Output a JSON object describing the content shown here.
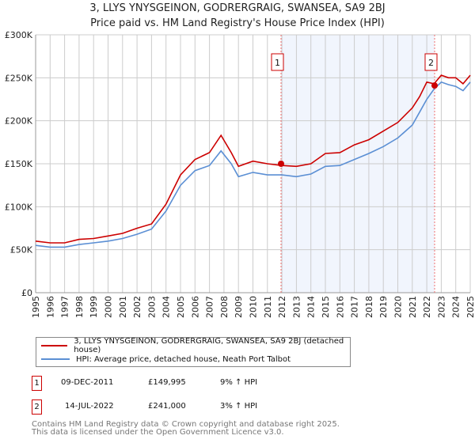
{
  "header": {
    "title": "3, LLYS YNYSGEINON, GODRERGRAIG, SWANSEA, SA9 2BJ",
    "subtitle": "Price paid vs. HM Land Registry's House Price Index (HPI)"
  },
  "chart_data": {
    "type": "line",
    "title": "3, LLYS YNYSGEINON, GODRERGRAIG, SWANSEA, SA9 2BJ",
    "subtitle": "Price paid vs. HM Land Registry's House Price Index (HPI)",
    "xlim": [
      1995,
      2025
    ],
    "ylim": [
      0,
      300000
    ],
    "yticks": [
      {
        "v": 0,
        "label": "£0"
      },
      {
        "v": 50000,
        "label": "£50K"
      },
      {
        "v": 100000,
        "label": "£100K"
      },
      {
        "v": 150000,
        "label": "£150K"
      },
      {
        "v": 200000,
        "label": "£200K"
      },
      {
        "v": 250000,
        "label": "£250K"
      },
      {
        "v": 300000,
        "label": "£300K"
      }
    ],
    "xticks": [
      "1995",
      "1996",
      "1997",
      "1998",
      "1999",
      "2000",
      "2001",
      "2002",
      "2003",
      "2004",
      "2005",
      "2006",
      "2007",
      "2008",
      "2009",
      "2010",
      "2011",
      "2012",
      "2013",
      "2014",
      "2015",
      "2016",
      "2017",
      "2018",
      "2019",
      "2020",
      "2021",
      "2022",
      "2023",
      "2024",
      "2025"
    ],
    "grid": true,
    "shaded_range": [
      2011.94,
      2022.54
    ],
    "series": [
      {
        "name": "3, LLYS YNYSGEINON, GODRERGRAIG, SWANSEA, SA9 2BJ (detached house)",
        "color": "#cc0000",
        "x": [
          1995,
          1996,
          1997,
          1998,
          1999,
          2000,
          2001,
          2002,
          2003,
          2004,
          2005,
          2006,
          2007,
          2007.8,
          2008.5,
          2009,
          2010,
          2011,
          2012,
          2013,
          2014,
          2015,
          2016,
          2017,
          2018,
          2019,
          2020,
          2021,
          2021.5,
          2022,
          2022.5,
          2023,
          2023.5,
          2024,
          2024.5,
          2025
        ],
        "y": [
          60000,
          58000,
          58000,
          62000,
          63000,
          66000,
          69000,
          75000,
          80000,
          103000,
          137000,
          155000,
          163000,
          183000,
          163000,
          147000,
          153000,
          150000,
          148000,
          147000,
          150000,
          162000,
          163000,
          172000,
          178000,
          188000,
          198000,
          215000,
          228000,
          245000,
          243000,
          253000,
          250000,
          250000,
          243000,
          253000
        ]
      },
      {
        "name": "HPI: Average price, detached house, Neath Port Talbot",
        "color": "#5b8fd4",
        "x": [
          1995,
          1996,
          1997,
          1998,
          1999,
          2000,
          2001,
          2002,
          2003,
          2004,
          2005,
          2006,
          2007,
          2007.8,
          2008.5,
          2009,
          2010,
          2011,
          2012,
          2013,
          2014,
          2015,
          2016,
          2017,
          2018,
          2019,
          2020,
          2021,
          2021.5,
          2022,
          2022.5,
          2023,
          2023.5,
          2024,
          2024.5,
          2025
        ],
        "y": [
          55000,
          53000,
          53000,
          56000,
          58000,
          60000,
          63000,
          68000,
          74000,
          95000,
          125000,
          142000,
          148000,
          165000,
          150000,
          135000,
          140000,
          137000,
          137000,
          135000,
          138000,
          147000,
          148000,
          155000,
          162000,
          170000,
          180000,
          195000,
          210000,
          225000,
          237000,
          245000,
          242000,
          240000,
          235000,
          245000
        ]
      }
    ],
    "sales": [
      {
        "n": "1",
        "x": 2011.94,
        "y": 149995
      },
      {
        "n": "2",
        "x": 2022.54,
        "y": 241000
      }
    ]
  },
  "legend": {
    "items": [
      {
        "label": "3, LLYS YNYSGEINON, GODRERGRAIG, SWANSEA, SA9 2BJ (detached house)",
        "color": "#cc0000"
      },
      {
        "label": "HPI: Average price, detached house, Neath Port Talbot",
        "color": "#5b8fd4"
      }
    ]
  },
  "transactions": [
    {
      "n": "1",
      "date": "09-DEC-2011",
      "price": "£149,995",
      "hpi": "9% ↑ HPI"
    },
    {
      "n": "2",
      "date": "14-JUL-2022",
      "price": "£241,000",
      "hpi": "3% ↑ HPI"
    }
  ],
  "footer": {
    "line1": "Contains HM Land Registry data © Crown copyright and database right 2025.",
    "line2": "This data is licensed under the Open Government Licence v3.0."
  }
}
